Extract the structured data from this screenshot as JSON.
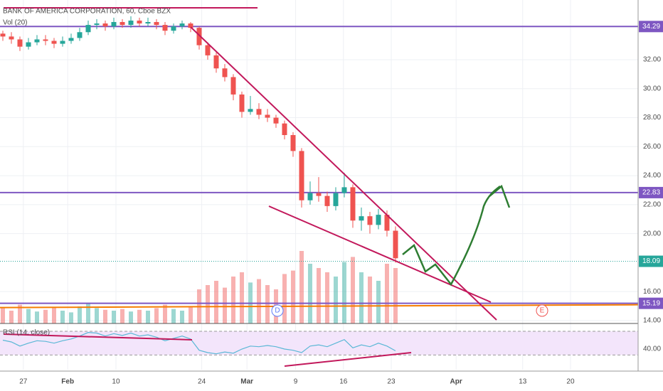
{
  "chart_data": {
    "type": "candlestick",
    "title": "BANK OF AMERICA CORPORATION, 60, Cboe BZX",
    "volume_label": "Vol (20)",
    "rsi_label": "RSI (14, close)",
    "up_color": "#26a69a",
    "down_color": "#ef5350",
    "ohlc": [
      [
        33.8,
        34.0,
        33.3,
        33.6
      ],
      [
        33.6,
        33.9,
        33.1,
        33.4
      ],
      [
        33.4,
        33.6,
        32.6,
        32.9
      ],
      [
        32.9,
        33.5,
        32.7,
        33.2
      ],
      [
        33.2,
        33.7,
        33.0,
        33.4
      ],
      [
        33.4,
        33.7,
        33.0,
        33.3
      ],
      [
        33.3,
        33.5,
        32.8,
        33.1
      ],
      [
        33.1,
        33.6,
        32.9,
        33.3
      ],
      [
        33.3,
        33.8,
        33.1,
        33.5
      ],
      [
        33.5,
        34.2,
        33.3,
        33.9
      ],
      [
        33.9,
        34.7,
        33.7,
        34.4
      ],
      [
        34.4,
        34.8,
        34.1,
        34.5
      ],
      [
        34.5,
        34.7,
        34.0,
        34.3
      ],
      [
        34.3,
        34.9,
        34.1,
        34.6
      ],
      [
        34.6,
        34.8,
        34.2,
        34.4
      ],
      [
        34.4,
        35.0,
        34.2,
        34.7
      ],
      [
        34.7,
        34.9,
        34.3,
        34.5
      ],
      [
        34.5,
        34.9,
        34.3,
        34.6
      ],
      [
        34.6,
        34.8,
        34.1,
        34.4
      ],
      [
        34.4,
        34.6,
        33.7,
        34.0
      ],
      [
        34.0,
        34.5,
        33.8,
        34.3
      ],
      [
        34.3,
        34.7,
        34.1,
        34.5
      ],
      [
        34.5,
        34.6,
        33.9,
        34.2
      ],
      [
        34.2,
        34.3,
        32.7,
        33.0
      ],
      [
        33.0,
        33.2,
        32.0,
        32.3
      ],
      [
        32.3,
        32.5,
        31.1,
        31.4
      ],
      [
        31.4,
        31.7,
        30.5,
        30.8
      ],
      [
        30.8,
        31.0,
        29.2,
        29.6
      ],
      [
        29.6,
        29.8,
        28.0,
        28.4
      ],
      [
        28.4,
        29.5,
        28.2,
        28.6
      ],
      [
        28.6,
        29.0,
        27.9,
        28.2
      ],
      [
        28.2,
        28.6,
        27.7,
        28.0
      ],
      [
        28.0,
        28.2,
        27.3,
        27.6
      ],
      [
        27.6,
        27.8,
        26.5,
        26.8
      ],
      [
        26.8,
        27.0,
        25.3,
        25.7
      ],
      [
        25.7,
        25.9,
        21.8,
        22.3
      ],
      [
        22.3,
        23.6,
        22.0,
        22.8
      ],
      [
        22.8,
        23.9,
        22.2,
        22.6
      ],
      [
        22.6,
        22.9,
        21.5,
        21.9
      ],
      [
        21.9,
        23.2,
        21.6,
        22.8
      ],
      [
        22.8,
        24.2,
        22.5,
        23.2
      ],
      [
        23.2,
        23.4,
        20.4,
        20.9
      ],
      [
        20.9,
        21.8,
        20.2,
        21.2
      ],
      [
        21.2,
        21.5,
        20.0,
        20.6
      ],
      [
        20.6,
        21.7,
        20.3,
        21.3
      ],
      [
        21.3,
        21.6,
        19.8,
        20.2
      ],
      [
        20.2,
        20.5,
        18.0,
        18.3
      ]
    ],
    "volume": [
      18,
      15,
      22,
      17,
      14,
      16,
      19,
      15,
      13,
      20,
      24,
      18,
      16,
      15,
      17,
      14,
      16,
      15,
      18,
      22,
      17,
      15,
      19,
      40,
      45,
      50,
      42,
      55,
      60,
      48,
      52,
      45,
      40,
      58,
      62,
      85,
      70,
      65,
      60,
      55,
      72,
      78,
      60,
      55,
      50,
      70,
      65
    ],
    "volume_lim": [
      0,
      100
    ],
    "rsi": [
      55,
      52,
      45,
      50,
      54,
      53,
      50,
      54,
      57,
      62,
      68,
      67,
      62,
      66,
      63,
      67,
      62,
      64,
      60,
      54,
      58,
      62,
      57,
      38,
      34,
      32,
      35,
      33,
      40,
      45,
      44,
      46,
      44,
      40,
      38,
      34,
      45,
      47,
      44,
      50,
      56,
      42,
      47,
      44,
      50,
      45,
      37
    ],
    "rsi_lim": [
      5.2,
      79.6
    ],
    "rsi_bands": [
      70,
      30
    ],
    "rsi_ticks": [
      {
        "value": 40,
        "label": "40.00"
      }
    ],
    "xlim": [
      -0.333,
      74.42
    ],
    "xticks": [
      {
        "value": 2.4,
        "label": "27"
      },
      {
        "value": 7.6,
        "label": "Feb"
      },
      {
        "value": 13.25,
        "label": "10"
      },
      {
        "value": 23.3,
        "label": "24"
      },
      {
        "value": 28.6,
        "label": "Mar"
      },
      {
        "value": 34.3,
        "label": "9"
      },
      {
        "value": 39.9,
        "label": "16"
      },
      {
        "value": 45.5,
        "label": "23"
      },
      {
        "value": 53.1,
        "label": "Apr"
      },
      {
        "value": 60.9,
        "label": "13"
      },
      {
        "value": 66.5,
        "label": "20"
      }
    ],
    "ylim": [
      13.8,
      36.12
    ],
    "yticks": [
      {
        "value": 16,
        "label": "16.00"
      },
      {
        "value": 20,
        "label": "20.00"
      },
      {
        "value": 22,
        "label": "22.00"
      },
      {
        "value": 24,
        "label": "24.00"
      },
      {
        "value": 26,
        "label": "26.00"
      },
      {
        "value": 28,
        "label": "28.00"
      },
      {
        "value": 30,
        "label": "30.00"
      },
      {
        "value": 32,
        "label": "32.00"
      },
      {
        "value": 14,
        "label": "14.00"
      }
    ],
    "levels": [
      {
        "value": 34.29,
        "color": "#7e57c2",
        "style": "solid"
      },
      {
        "value": 22.83,
        "color": "#7e57c2",
        "style": "solid"
      },
      {
        "value": 18.09,
        "color": "#26a69a",
        "style": "dotted"
      },
      {
        "value": 15.19,
        "color": "#7e57c2",
        "style": "solid"
      }
    ],
    "events": [
      "D",
      "E"
    ],
    "grid": true
  }
}
